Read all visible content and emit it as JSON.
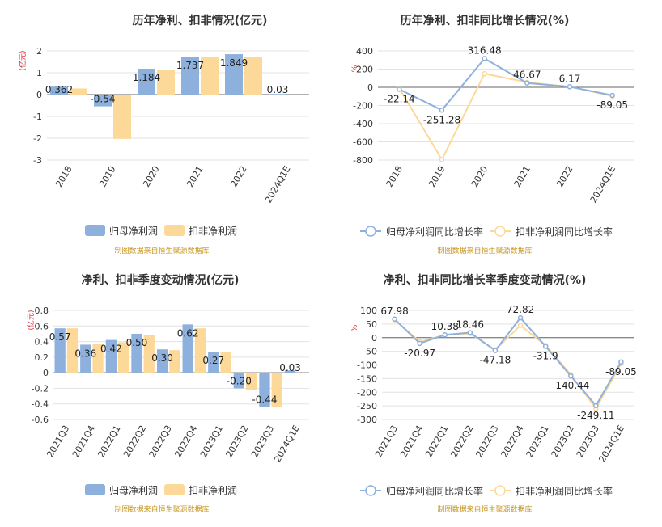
{
  "chart_data": [
    {
      "type": "bar",
      "title": "历年净利、扣非情况(亿元)",
      "ylabel": "(亿元)",
      "categories": [
        "2018",
        "2019",
        "2020",
        "2021",
        "2022",
        "2024Q1E"
      ],
      "ylim": [
        -3,
        2
      ],
      "yticks": [
        2,
        1,
        0,
        -1,
        -2,
        -3
      ],
      "series": [
        {
          "name": "归母净利润",
          "color": "#8eb0dd",
          "values": [
            0.362,
            -0.54,
            1.184,
            1.737,
            1.849,
            0.03
          ],
          "labels": [
            "0.362",
            "-0.54",
            "1.184",
            "1.737",
            "1.849",
            "0.03"
          ]
        },
        {
          "name": "扣非净利润",
          "color": "#fcd899",
          "values": [
            0.28,
            -2.03,
            1.13,
            1.74,
            1.72,
            null
          ]
        }
      ],
      "legend_position": "bottom",
      "grid": true,
      "source": "制图数据来自恒生聚源数据库"
    },
    {
      "type": "line",
      "title": "历年净利、扣非同比增长情况(%)",
      "ylabel": "%",
      "categories": [
        "2018",
        "2019",
        "2020",
        "2021",
        "2022",
        "2024Q1E"
      ],
      "ylim": [
        -800,
        400
      ],
      "yticks": [
        400,
        200,
        0,
        -200,
        -400,
        -600,
        -800
      ],
      "series": [
        {
          "name": "归母净利润同比增长率",
          "color": "#8eb0dd",
          "values": [
            -22.14,
            -251.28,
            316.48,
            46.67,
            6.17,
            -89.05
          ],
          "labels": [
            "-22.14",
            "-251.28",
            "316.48",
            "46.67",
            "6.17",
            "-89.05"
          ]
        },
        {
          "name": "扣非净利润同比增长率",
          "color": "#fcd899",
          "values": [
            -10,
            -795,
            150,
            55,
            5,
            -95
          ]
        }
      ],
      "legend_position": "bottom",
      "grid": true,
      "source": "制图数据来自恒生聚源数据库"
    },
    {
      "type": "bar",
      "title": "净利、扣非季度变动情况(亿元)",
      "ylabel": "(亿元)",
      "categories": [
        "2021Q3",
        "2021Q4",
        "2022Q1",
        "2022Q2",
        "2022Q3",
        "2022Q4",
        "2023Q1",
        "2023Q2",
        "2023Q3",
        "2024Q1E"
      ],
      "ylim": [
        -0.6,
        0.8
      ],
      "yticks": [
        0.8,
        0.6,
        0.4,
        0.2,
        0,
        -0.2,
        -0.4,
        -0.6
      ],
      "series": [
        {
          "name": "归母净利润",
          "color": "#8eb0dd",
          "values": [
            0.57,
            0.36,
            0.42,
            0.5,
            0.3,
            0.62,
            0.27,
            -0.2,
            -0.44,
            0.03
          ],
          "labels": [
            "0.57",
            "0.36",
            "0.42",
            "0.50",
            "0.30",
            "0.62",
            "0.27",
            "-0.20",
            "-0.44",
            "0.03"
          ]
        },
        {
          "name": "扣非净利润",
          "color": "#fcd899",
          "values": [
            0.57,
            0.37,
            0.39,
            0.48,
            0.29,
            0.57,
            0.27,
            -0.22,
            -0.44,
            null
          ]
        }
      ],
      "legend_position": "bottom",
      "grid": true,
      "source": "制图数据来自恒生聚源数据库"
    },
    {
      "type": "line",
      "title": "净利、扣非同比增长率季度变动情况(%)",
      "ylabel": "%",
      "categories": [
        "2021Q3",
        "2021Q4",
        "2022Q1",
        "2022Q2",
        "2022Q3",
        "2022Q4",
        "2023Q1",
        "2023Q2",
        "2023Q3",
        "2024Q1E"
      ],
      "ylim": [
        -300,
        100
      ],
      "yticks": [
        100,
        50,
        0,
        -50,
        -100,
        -150,
        -200,
        -250,
        -300
      ],
      "series": [
        {
          "name": "归母净利润同比增长率",
          "color": "#8eb0dd",
          "values": [
            67.98,
            -20.97,
            10.38,
            18.46,
            -47.18,
            72.82,
            -31.9,
            -140.44,
            -249.11,
            -89.05
          ],
          "labels": [
            "67.98",
            "-20.97",
            "10.38",
            "18.46",
            "-47.18",
            "72.82",
            "-31.9",
            "-140.44",
            "-249.11",
            "-89.05"
          ]
        },
        {
          "name": "扣非净利润同比增长率",
          "color": "#fcd899",
          "values": [
            66,
            -15,
            10,
            15,
            -45,
            45,
            -28,
            -135,
            -260,
            -95
          ]
        }
      ],
      "legend_position": "bottom",
      "grid": true,
      "source": "制图数据来自恒生聚源数据库"
    }
  ]
}
